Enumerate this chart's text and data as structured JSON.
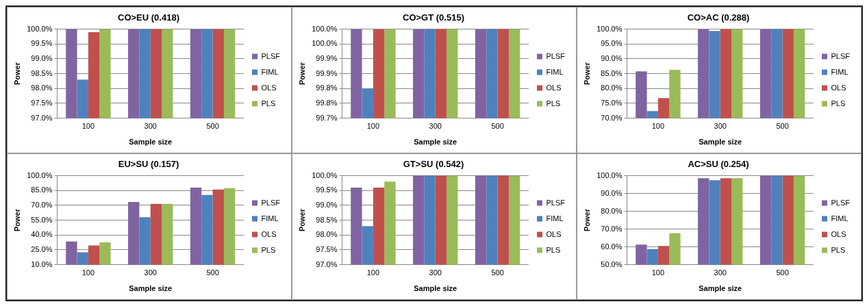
{
  "chart_data": [
    {
      "type": "bar",
      "title": "CO>EU (0.418)",
      "xlabel": "Sample size",
      "ylabel": "Power",
      "categories": [
        "100",
        "300",
        "500"
      ],
      "ylim": [
        97,
        100
      ],
      "yticks": [
        {
          "value": 97,
          "label": "97.0%"
        },
        {
          "value": 97.5,
          "label": "97.5%"
        },
        {
          "value": 98,
          "label": "98.0%"
        },
        {
          "value": 98.5,
          "label": "98.5%"
        },
        {
          "value": 99,
          "label": "99.0%"
        },
        {
          "value": 99.5,
          "label": "99.5%"
        },
        {
          "value": 100,
          "label": "100.0%"
        }
      ],
      "grid": "y",
      "legend": "right",
      "series": [
        {
          "name": "PLSF",
          "color": "#8064a2",
          "values": [
            100,
            100,
            100
          ]
        },
        {
          "name": "FIML",
          "color": "#4f81bd",
          "values": [
            98.3,
            100,
            100
          ]
        },
        {
          "name": "OLS",
          "color": "#c0504d",
          "values": [
            99.9,
            100,
            100
          ]
        },
        {
          "name": "PLS",
          "color": "#9bbb59",
          "values": [
            100,
            100,
            100
          ]
        }
      ]
    },
    {
      "type": "bar",
      "title": "CO>GT (0.515)",
      "xlabel": "Sample size",
      "ylabel": "Power",
      "categories": [
        "100",
        "300",
        "500"
      ],
      "ylim": [
        99.7,
        100
      ],
      "yticks": [
        {
          "value": 99.7,
          "label": "99.7%"
        },
        {
          "value": 99.75,
          "label": "99.8%"
        },
        {
          "value": 99.8,
          "label": "99.8%"
        },
        {
          "value": 99.85,
          "label": "99.9%"
        },
        {
          "value": 99.9,
          "label": "99.9%"
        },
        {
          "value": 99.95,
          "label": "100.0%"
        },
        {
          "value": 100,
          "label": "100.0%"
        }
      ],
      "grid": "y",
      "legend": "right",
      "series": [
        {
          "name": "PLSF",
          "color": "#8064a2",
          "values": [
            100,
            100,
            100
          ]
        },
        {
          "name": "FIML",
          "color": "#4f81bd",
          "values": [
            99.8,
            100,
            100
          ]
        },
        {
          "name": "OLS",
          "color": "#c0504d",
          "values": [
            100,
            100,
            100
          ]
        },
        {
          "name": "PLS",
          "color": "#9bbb59",
          "values": [
            100,
            100,
            100
          ]
        }
      ]
    },
    {
      "type": "bar",
      "title": "CO>AC (0.288)",
      "xlabel": "Sample size",
      "ylabel": "Power",
      "categories": [
        "100",
        "300",
        "500"
      ],
      "ylim": [
        70,
        100
      ],
      "yticks": [
        {
          "value": 70,
          "label": "70.0%"
        },
        {
          "value": 75,
          "label": "75.0%"
        },
        {
          "value": 80,
          "label": "80.0%"
        },
        {
          "value": 85,
          "label": "85.0%"
        },
        {
          "value": 90,
          "label": "90.0%"
        },
        {
          "value": 95,
          "label": "95.0%"
        },
        {
          "value": 100,
          "label": "100.0%"
        }
      ],
      "grid": "y",
      "legend": "right",
      "series": [
        {
          "name": "PLSF",
          "color": "#8064a2",
          "values": [
            85.8,
            100,
            100
          ]
        },
        {
          "name": "FIML",
          "color": "#4f81bd",
          "values": [
            72.4,
            99.4,
            100
          ]
        },
        {
          "name": "OLS",
          "color": "#c0504d",
          "values": [
            76.8,
            100,
            100
          ]
        },
        {
          "name": "PLS",
          "color": "#9bbb59",
          "values": [
            86.3,
            100,
            100
          ]
        }
      ]
    },
    {
      "type": "bar",
      "title": "EU>SU (0.157)",
      "xlabel": "Sample size",
      "ylabel": "Power",
      "categories": [
        "100",
        "300",
        "500"
      ],
      "ylim": [
        10,
        100
      ],
      "yticks": [
        {
          "value": 10,
          "label": "10.0%"
        },
        {
          "value": 25,
          "label": "25.0%"
        },
        {
          "value": 40,
          "label": "40.0%"
        },
        {
          "value": 55,
          "label": "55.0%"
        },
        {
          "value": 70,
          "label": "70.0%"
        },
        {
          "value": 85,
          "label": "85.0%"
        },
        {
          "value": 100,
          "label": "100.0%"
        }
      ],
      "grid": "y",
      "legend": "right",
      "series": [
        {
          "name": "PLSF",
          "color": "#8064a2",
          "values": [
            33.5,
            73.5,
            88
          ]
        },
        {
          "name": "FIML",
          "color": "#4f81bd",
          "values": [
            22.5,
            58,
            80.5
          ]
        },
        {
          "name": "OLS",
          "color": "#c0504d",
          "values": [
            29.5,
            71.5,
            86
          ]
        },
        {
          "name": "PLS",
          "color": "#9bbb59",
          "values": [
            32.5,
            71.5,
            87.5
          ]
        }
      ]
    },
    {
      "type": "bar",
      "title": "GT>SU (0.542)",
      "xlabel": "Sample size",
      "ylabel": "Power",
      "categories": [
        "100",
        "300",
        "500"
      ],
      "ylim": [
        97,
        100
      ],
      "yticks": [
        {
          "value": 97,
          "label": "97.0%"
        },
        {
          "value": 97.5,
          "label": "97.5%"
        },
        {
          "value": 98,
          "label": "98.0%"
        },
        {
          "value": 98.5,
          "label": "98.5%"
        },
        {
          "value": 99,
          "label": "99.0%"
        },
        {
          "value": 99.5,
          "label": "99.5%"
        },
        {
          "value": 100,
          "label": "100.0%"
        }
      ],
      "grid": "y",
      "legend": "right",
      "series": [
        {
          "name": "PLSF",
          "color": "#8064a2",
          "values": [
            99.6,
            100,
            100
          ]
        },
        {
          "name": "FIML",
          "color": "#4f81bd",
          "values": [
            98.3,
            100,
            100
          ]
        },
        {
          "name": "OLS",
          "color": "#c0504d",
          "values": [
            99.6,
            100,
            100
          ]
        },
        {
          "name": "PLS",
          "color": "#9bbb59",
          "values": [
            99.8,
            100,
            100
          ]
        }
      ]
    },
    {
      "type": "bar",
      "title": "AC>SU (0.254)",
      "xlabel": "Sample size",
      "ylabel": "Power",
      "categories": [
        "100",
        "300",
        "500"
      ],
      "ylim": [
        50,
        100
      ],
      "yticks": [
        {
          "value": 50,
          "label": "50.0%"
        },
        {
          "value": 60,
          "label": "60.0%"
        },
        {
          "value": 70,
          "label": "70.0%"
        },
        {
          "value": 80,
          "label": "80.0%"
        },
        {
          "value": 90,
          "label": "90.0%"
        },
        {
          "value": 100,
          "label": "100.0%"
        }
      ],
      "grid": "y",
      "legend": "right",
      "series": [
        {
          "name": "PLSF",
          "color": "#8064a2",
          "values": [
            61.3,
            98.6,
            100
          ]
        },
        {
          "name": "FIML",
          "color": "#4f81bd",
          "values": [
            58.8,
            97.4,
            100
          ]
        },
        {
          "name": "OLS",
          "color": "#c0504d",
          "values": [
            60.5,
            98.6,
            100
          ]
        },
        {
          "name": "PLS",
          "color": "#9bbb59",
          "values": [
            67.7,
            98.6,
            100
          ]
        }
      ]
    }
  ]
}
